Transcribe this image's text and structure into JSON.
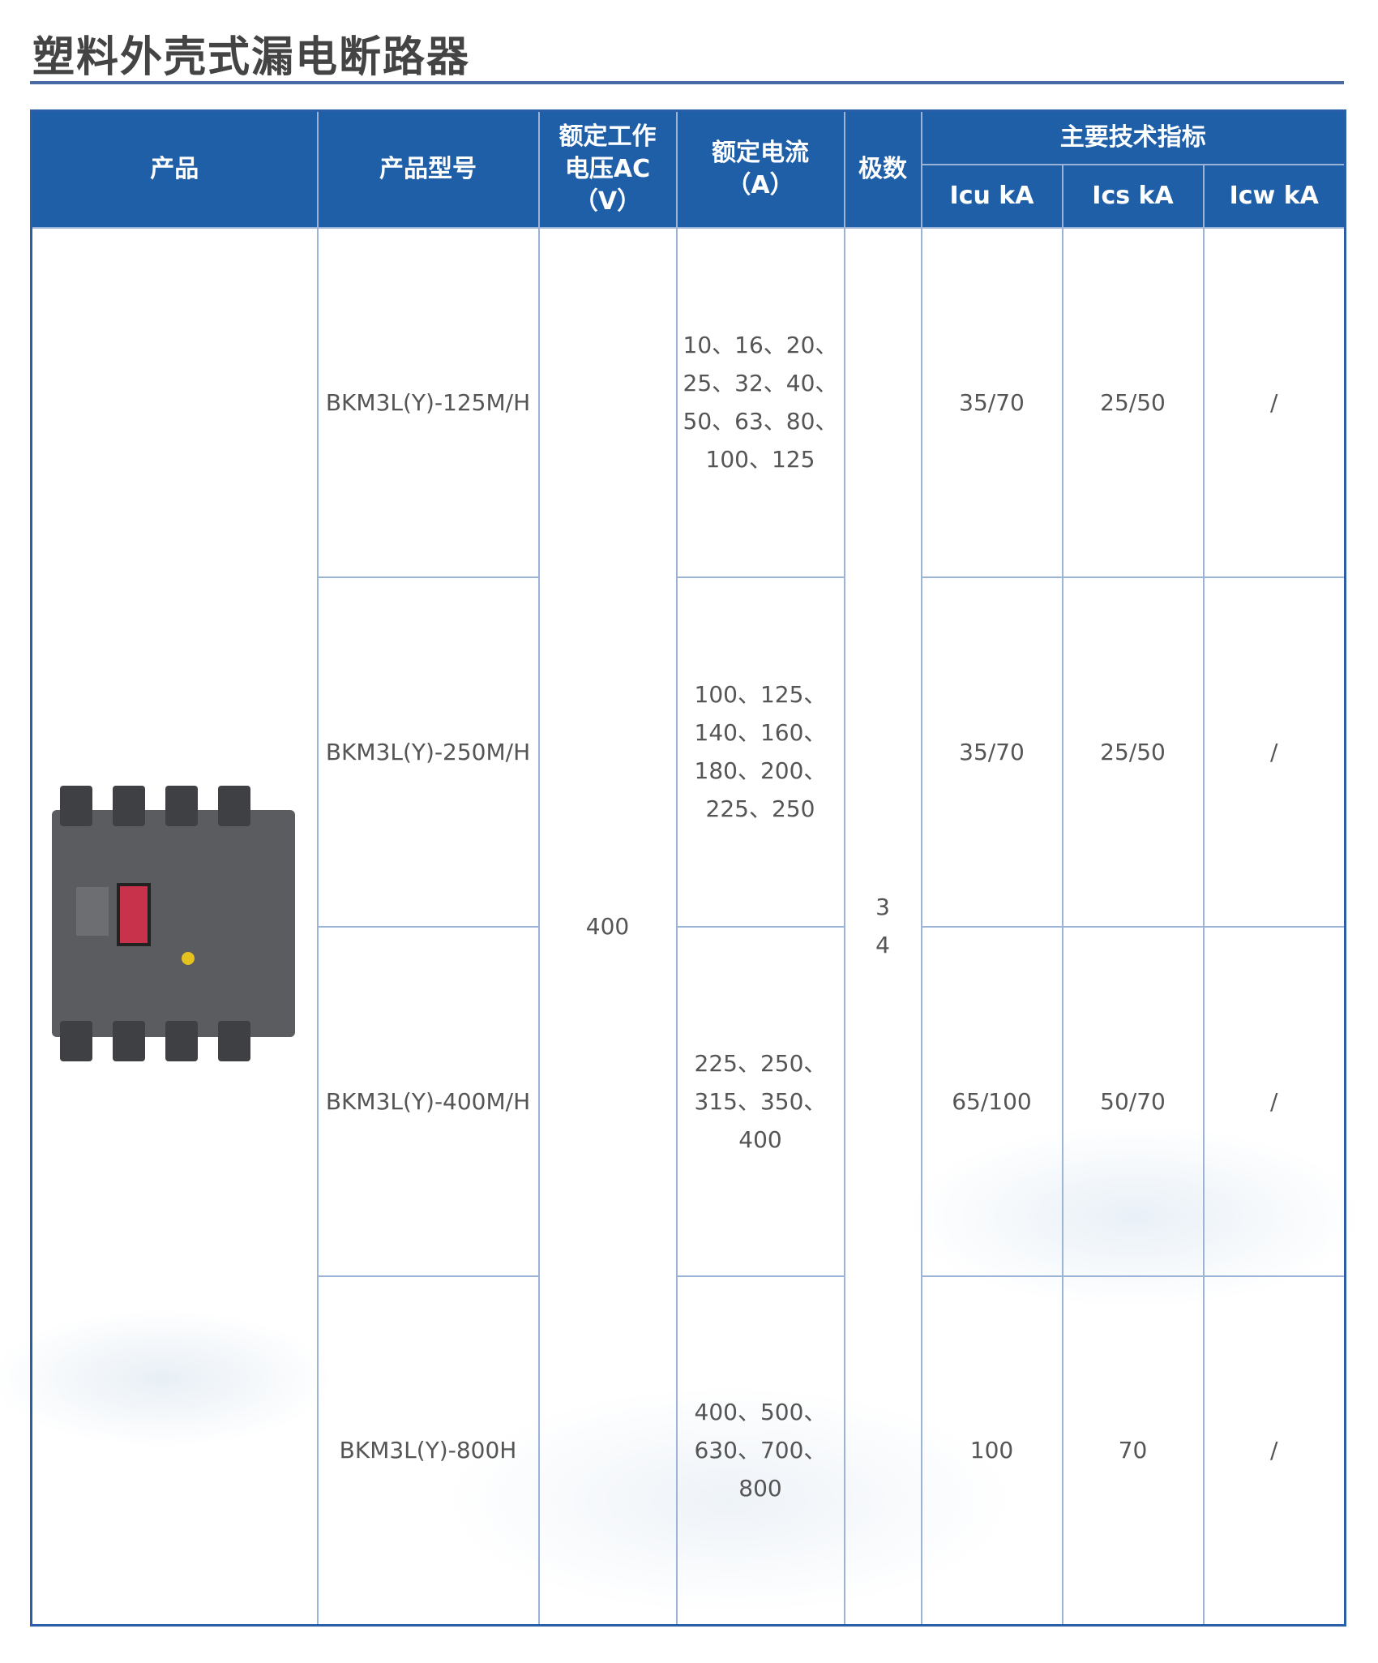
{
  "title": "塑料外壳式漏电断路器",
  "colors": {
    "header_bg": "#1f5fa8",
    "border": "#9bb3d6",
    "title_rule": "#4a6aa6"
  },
  "header": {
    "product": "产品",
    "model": "产品型号",
    "voltage": "额定工作电压AC（V）",
    "current": "额定电流（A）",
    "poles": "极数",
    "specs": "主要技术指标",
    "icu": "Icu kA",
    "ics": "Ics kA",
    "icw": "Icw kA"
  },
  "product_image": "molded-case-residual-current-circuit-breaker",
  "voltage": "400",
  "poles": "3\n4",
  "rows": [
    {
      "model": "BKM3L(Y)-125M/H",
      "current": "10、16、20、\n25、32、40、\n50、63、80、\n100、125",
      "icu": "35/70",
      "ics": "25/50",
      "icw": "/"
    },
    {
      "model": "BKM3L(Y)-250M/H",
      "current": "100、125、\n140、160、\n180、200、\n225、250",
      "icu": "35/70",
      "ics": "25/50",
      "icw": "/"
    },
    {
      "model": "BKM3L(Y)-400M/H",
      "current": "225、250、\n315、350、400",
      "icu": "65/100",
      "ics": "50/70",
      "icw": "/"
    },
    {
      "model": "BKM3L(Y)-800H",
      "current": "400、500、\n630、700、\n800",
      "icu": "100",
      "ics": "70",
      "icw": "/"
    }
  ]
}
